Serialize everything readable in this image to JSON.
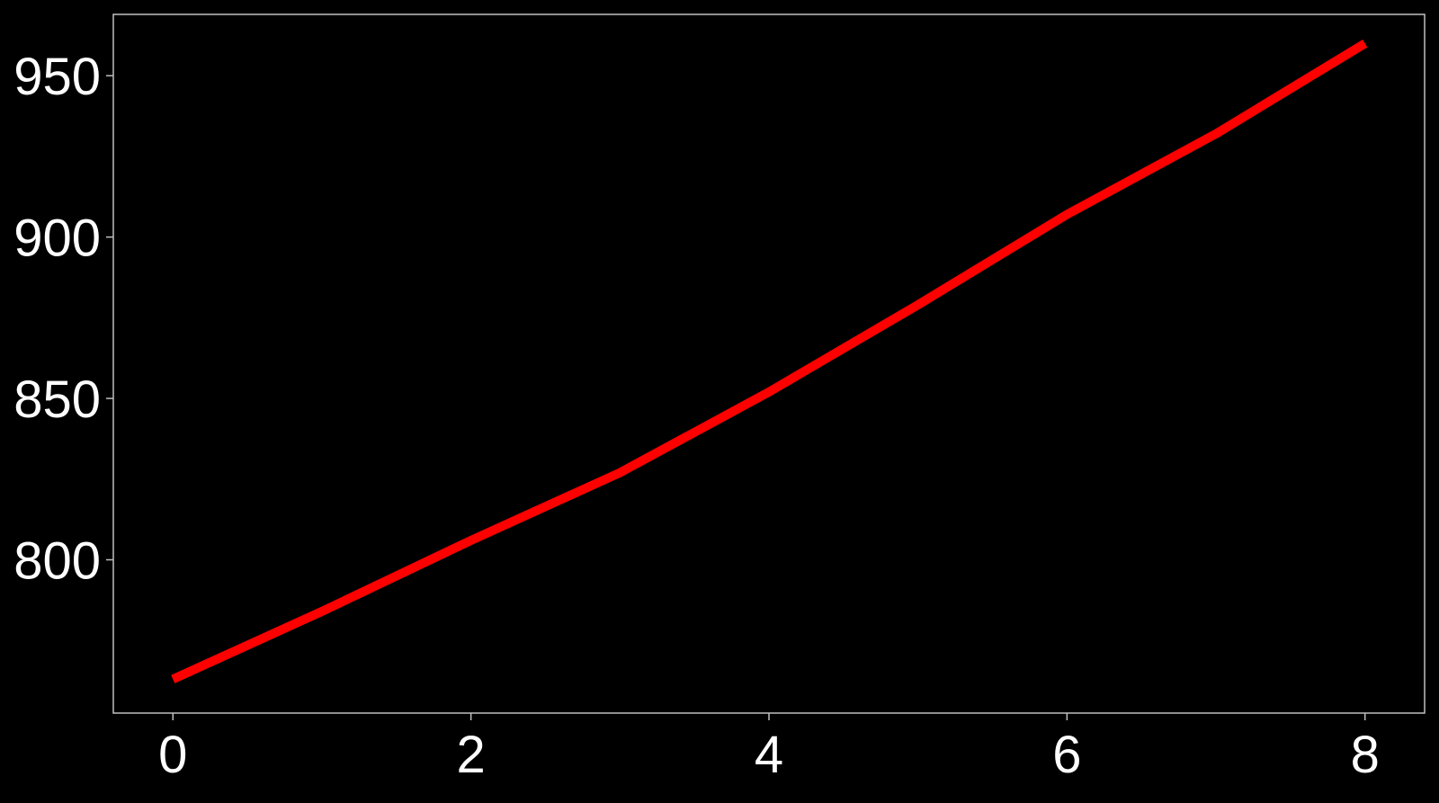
{
  "chart_data": {
    "type": "line",
    "title": "",
    "xlabel": "",
    "ylabel": "",
    "xlim": [
      -0.4,
      8.4
    ],
    "ylim": [
      752.5,
      969
    ],
    "xticks": [
      0,
      2,
      4,
      6,
      8
    ],
    "yticks": [
      800,
      850,
      900,
      950
    ],
    "grid": false,
    "legend": "none",
    "series": [
      {
        "color": "#ff0000",
        "x": [
          0,
          1,
          2,
          3,
          4,
          5,
          6,
          7,
          8
        ],
        "y": [
          763,
          784,
          806,
          827,
          852,
          879,
          907,
          932,
          960
        ]
      }
    ]
  },
  "colors": {
    "background": "#000000",
    "axes_frame": "#bfbfbf",
    "tick_text": "#ffffff",
    "line": "#ff0000"
  }
}
